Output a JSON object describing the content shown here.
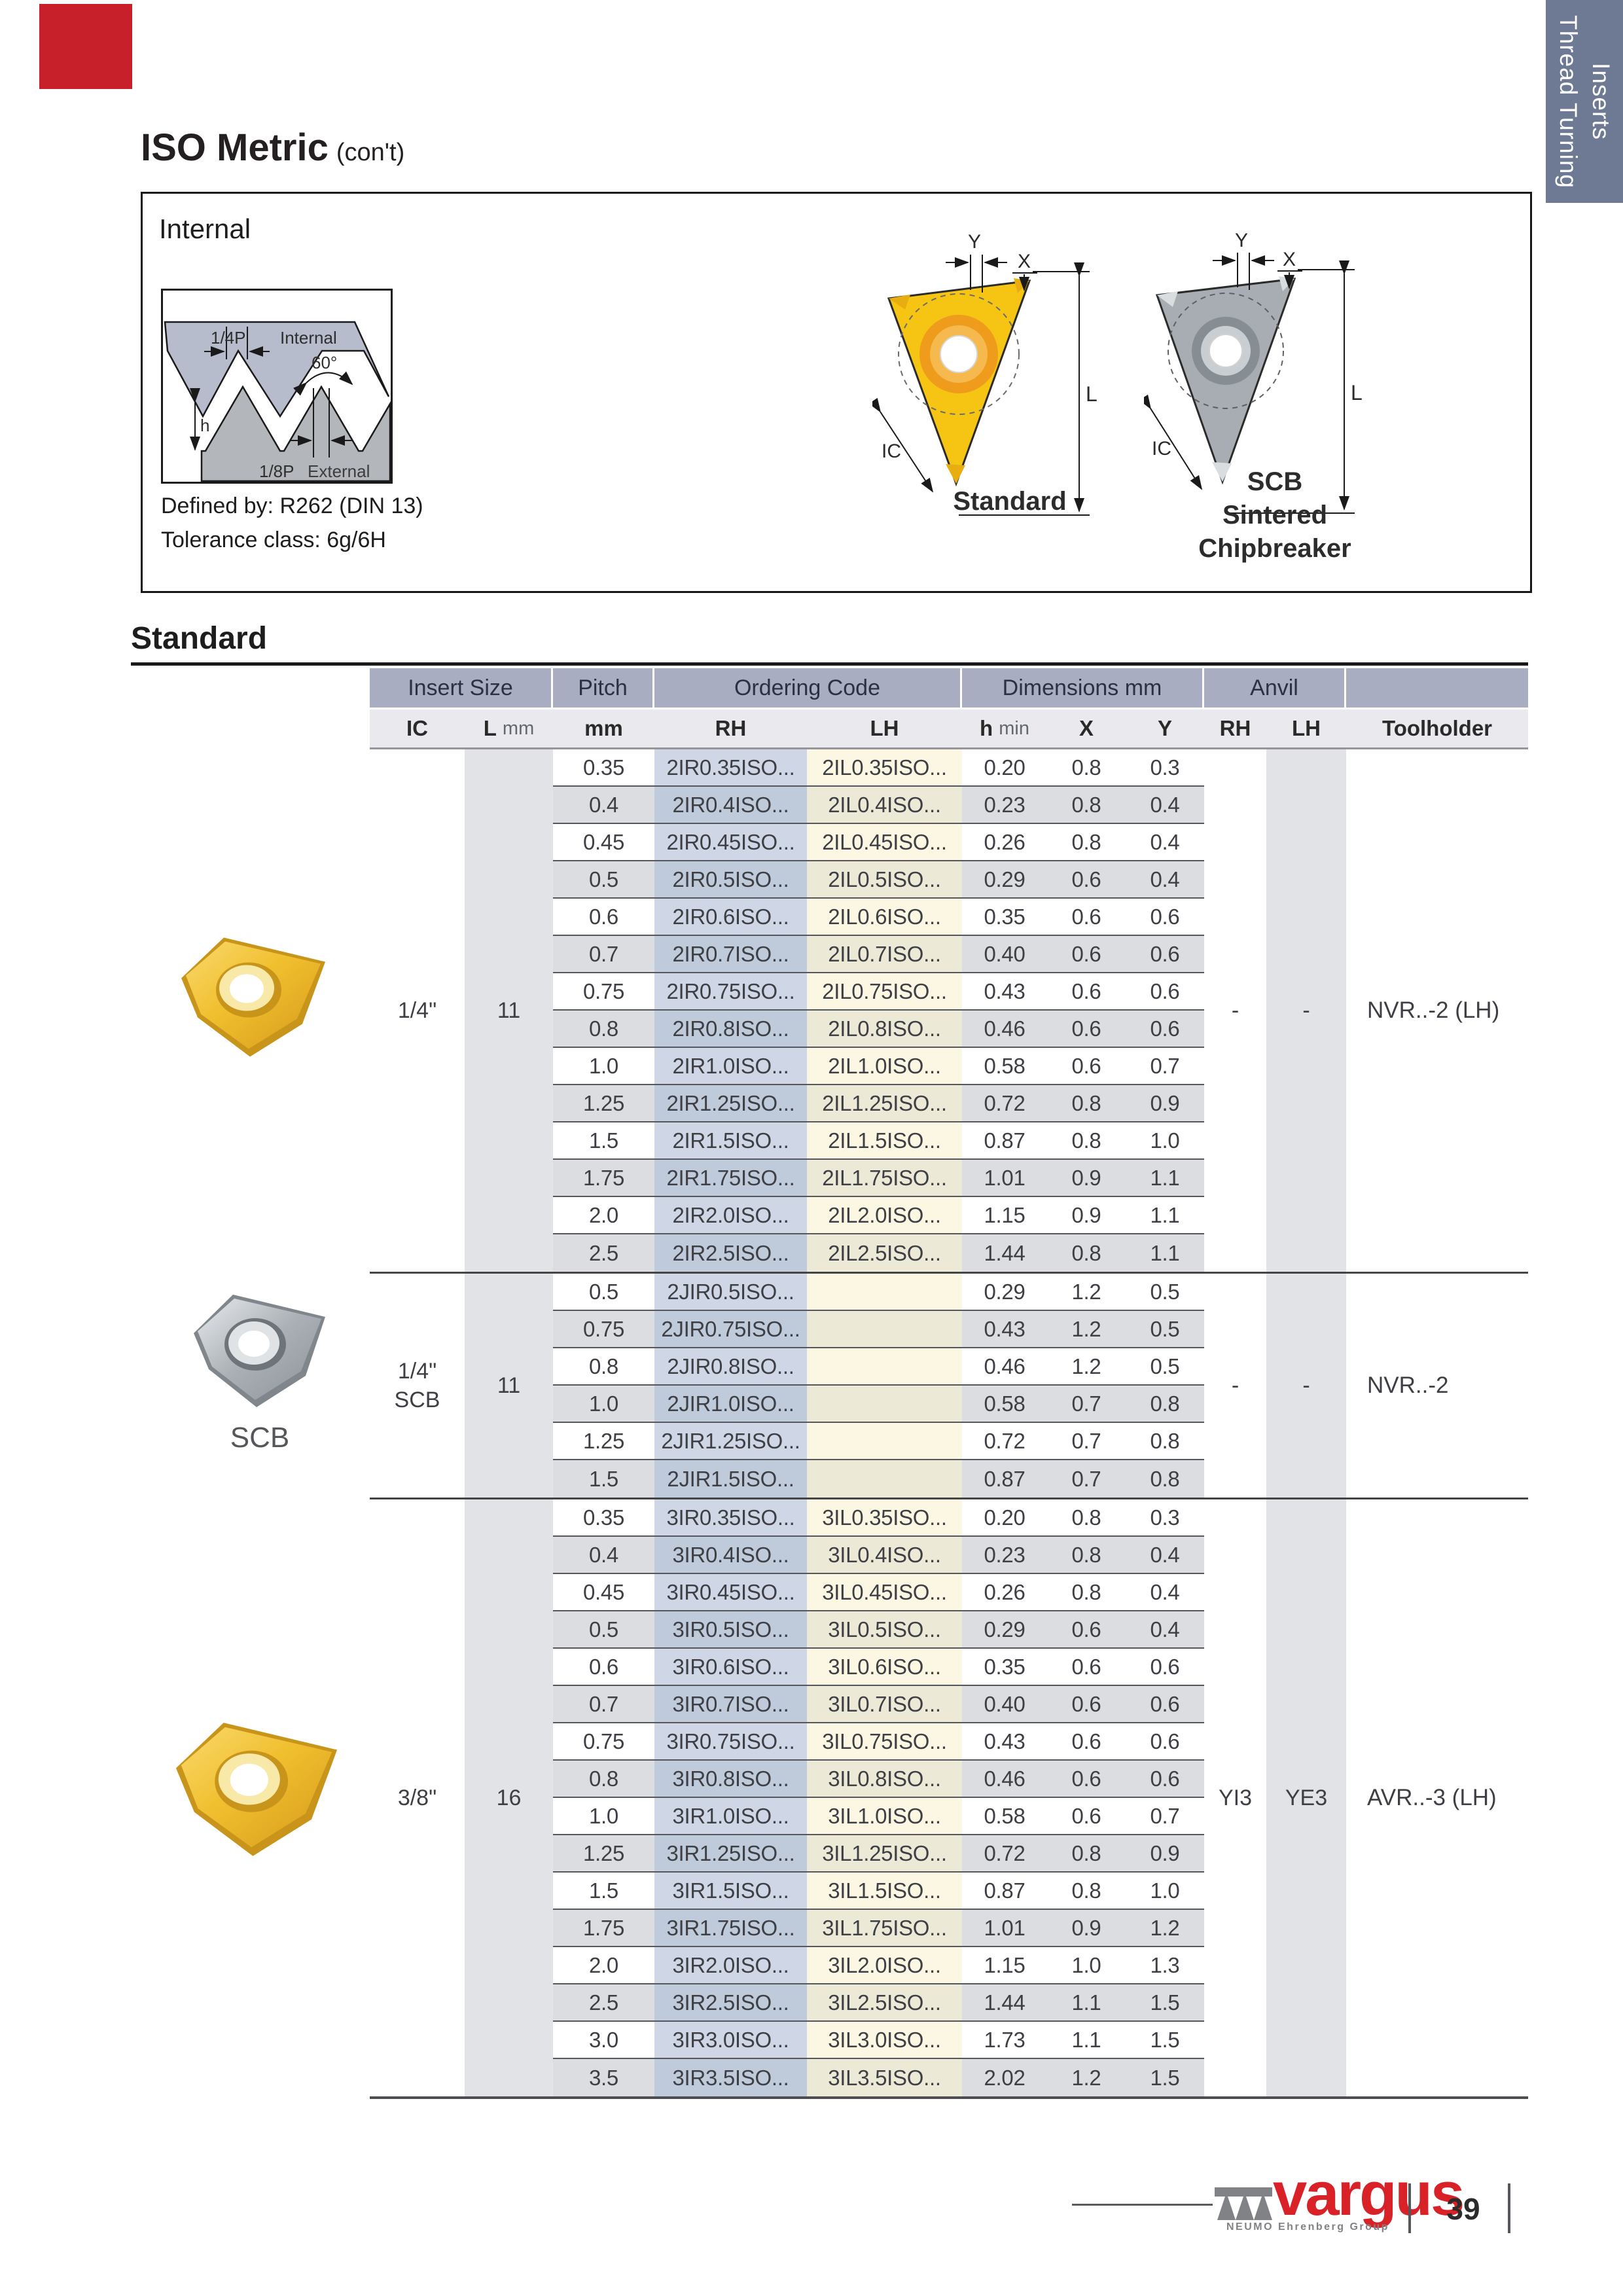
{
  "side_tab": {
    "label": "Thread Turning\nInserts",
    "bg": "#6e7994"
  },
  "corner_mark_color": "#c8202b",
  "title": {
    "main": "ISO Metric",
    "suffix": "(con't)"
  },
  "internal_box": {
    "heading": "Internal",
    "defined_by": "Defined by: R262 (DIN 13)",
    "tolerance": "Tolerance class: 6g/6H",
    "profile_labels": {
      "quarter_p": "1/4P",
      "internal": "Internal",
      "angle": "60°",
      "h": "h",
      "eighth_p": "1/8P",
      "external": "External"
    },
    "dim_labels": {
      "y": "Y",
      "x": "X",
      "l": "L",
      "ic": "IC"
    },
    "standard_caption": "Standard",
    "scb_caption": "SCB\nSintered\nChipbreaker"
  },
  "section_title": "Standard",
  "table": {
    "group_headers": [
      "Insert Size",
      "Pitch",
      "Ordering Code",
      "Dimensions mm",
      "Anvil"
    ],
    "sub_headers": {
      "ic": "IC",
      "l": "L",
      "l_unit": "mm",
      "pitch_unit": "mm",
      "rh": "RH",
      "lh": "LH",
      "h": "h",
      "h_unit": "min",
      "x": "X",
      "y": "Y",
      "anvil_rh": "RH",
      "anvil_lh": "LH",
      "toolholder": "Toolholder"
    },
    "groups": [
      {
        "ic": [
          "1/4\""
        ],
        "l": "11",
        "anvil_rh": "-",
        "anvil_lh": "-",
        "toolholder": "NVR..-2 (LH)",
        "rows": [
          [
            "0.35",
            "2IR0.35ISO...",
            "2IL0.35ISO...",
            "0.20",
            "0.8",
            "0.3"
          ],
          [
            "0.4",
            "2IR0.4ISO...",
            "2IL0.4ISO...",
            "0.23",
            "0.8",
            "0.4"
          ],
          [
            "0.45",
            "2IR0.45ISO...",
            "2IL0.45ISO...",
            "0.26",
            "0.8",
            "0.4"
          ],
          [
            "0.5",
            "2IR0.5ISO...",
            "2IL0.5ISO...",
            "0.29",
            "0.6",
            "0.4"
          ],
          [
            "0.6",
            "2IR0.6ISO...",
            "2IL0.6ISO...",
            "0.35",
            "0.6",
            "0.6"
          ],
          [
            "0.7",
            "2IR0.7ISO...",
            "2IL0.7ISO...",
            "0.40",
            "0.6",
            "0.6"
          ],
          [
            "0.75",
            "2IR0.75ISO...",
            "2IL0.75ISO...",
            "0.43",
            "0.6",
            "0.6"
          ],
          [
            "0.8",
            "2IR0.8ISO...",
            "2IL0.8ISO...",
            "0.46",
            "0.6",
            "0.6"
          ],
          [
            "1.0",
            "2IR1.0ISO...",
            "2IL1.0ISO...",
            "0.58",
            "0.6",
            "0.7"
          ],
          [
            "1.25",
            "2IR1.25ISO...",
            "2IL1.25ISO...",
            "0.72",
            "0.8",
            "0.9"
          ],
          [
            "1.5",
            "2IR1.5ISO...",
            "2IL1.5ISO...",
            "0.87",
            "0.8",
            "1.0"
          ],
          [
            "1.75",
            "2IR1.75ISO...",
            "2IL1.75ISO...",
            "1.01",
            "0.9",
            "1.1"
          ],
          [
            "2.0",
            "2IR2.0ISO...",
            "2IL2.0ISO...",
            "1.15",
            "0.9",
            "1.1"
          ],
          [
            "2.5",
            "2IR2.5ISO...",
            "2IL2.5ISO...",
            "1.44",
            "0.8",
            "1.1"
          ]
        ]
      },
      {
        "ic": [
          "1/4\"",
          "SCB"
        ],
        "l": "11",
        "anvil_rh": "-",
        "anvil_lh": "-",
        "toolholder": "NVR..-2",
        "photo_caption": "SCB",
        "rows": [
          [
            "0.5",
            "2JIR0.5ISO...",
            "",
            "0.29",
            "1.2",
            "0.5"
          ],
          [
            "0.75",
            "2JIR0.75ISO...",
            "",
            "0.43",
            "1.2",
            "0.5"
          ],
          [
            "0.8",
            "2JIR0.8ISO...",
            "",
            "0.46",
            "1.2",
            "0.5"
          ],
          [
            "1.0",
            "2JIR1.0ISO...",
            "",
            "0.58",
            "0.7",
            "0.8"
          ],
          [
            "1.25",
            "2JIR1.25ISO...",
            "",
            "0.72",
            "0.7",
            "0.8"
          ],
          [
            "1.5",
            "2JIR1.5ISO...",
            "",
            "0.87",
            "0.7",
            "0.8"
          ]
        ]
      },
      {
        "ic": [
          "3/8\""
        ],
        "l": "16",
        "anvil_rh": "YI3",
        "anvil_lh": "YE3",
        "toolholder": "AVR..-3 (LH)",
        "rows": [
          [
            "0.35",
            "3IR0.35ISO...",
            "3IL0.35ISO...",
            "0.20",
            "0.8",
            "0.3"
          ],
          [
            "0.4",
            "3IR0.4ISO...",
            "3IL0.4ISO...",
            "0.23",
            "0.8",
            "0.4"
          ],
          [
            "0.45",
            "3IR0.45ISO...",
            "3IL0.45ISO...",
            "0.26",
            "0.8",
            "0.4"
          ],
          [
            "0.5",
            "3IR0.5ISO...",
            "3IL0.5ISO...",
            "0.29",
            "0.6",
            "0.4"
          ],
          [
            "0.6",
            "3IR0.6ISO...",
            "3IL0.6ISO...",
            "0.35",
            "0.6",
            "0.6"
          ],
          [
            "0.7",
            "3IR0.7ISO...",
            "3IL0.7ISO...",
            "0.40",
            "0.6",
            "0.6"
          ],
          [
            "0.75",
            "3IR0.75ISO...",
            "3IL0.75ISO...",
            "0.43",
            "0.6",
            "0.6"
          ],
          [
            "0.8",
            "3IR0.8ISO...",
            "3IL0.8ISO...",
            "0.46",
            "0.6",
            "0.6"
          ],
          [
            "1.0",
            "3IR1.0ISO...",
            "3IL1.0ISO...",
            "0.58",
            "0.6",
            "0.7"
          ],
          [
            "1.25",
            "3IR1.25ISO...",
            "3IL1.25ISO...",
            "0.72",
            "0.8",
            "0.9"
          ],
          [
            "1.5",
            "3IR1.5ISO...",
            "3IL1.5ISO...",
            "0.87",
            "0.8",
            "1.0"
          ],
          [
            "1.75",
            "3IR1.75ISO...",
            "3IL1.75ISO...",
            "1.01",
            "0.9",
            "1.2"
          ],
          [
            "2.0",
            "3IR2.0ISO...",
            "3IL2.0ISO...",
            "1.15",
            "1.0",
            "1.3"
          ],
          [
            "2.5",
            "3IR2.5ISO...",
            "3IL2.5ISO...",
            "1.44",
            "1.1",
            "1.5"
          ],
          [
            "3.0",
            "3IR3.0ISO...",
            "3IL3.0ISO...",
            "1.73",
            "1.1",
            "1.5"
          ],
          [
            "3.5",
            "3IR3.5ISO...",
            "3IL3.5ISO...",
            "2.02",
            "1.2",
            "1.5"
          ]
        ]
      }
    ]
  },
  "footer": {
    "brand": "vargus",
    "brand_sub": "NEUMO Ehrenberg Group",
    "page_number": "39"
  }
}
